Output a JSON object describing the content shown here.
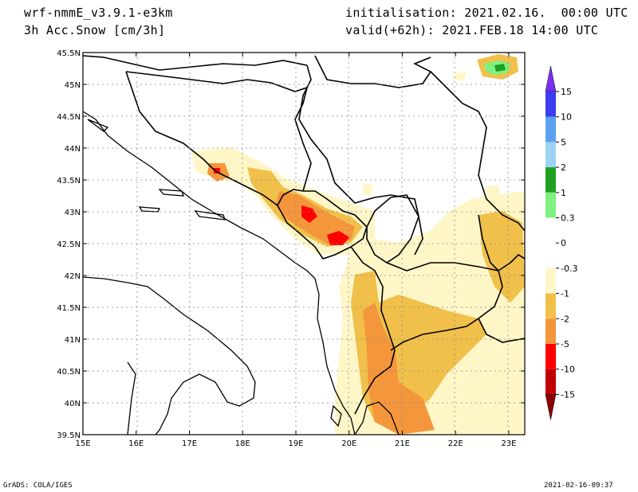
{
  "header": {
    "model": "wrf-nmmE_v3.9.1-e3km",
    "field": "3h Acc.Snow [cm/3h]",
    "init": "initialisation: 2021.02.16.  00:00 UTC",
    "valid": "valid(+62h): 2021.FEB.18 14:00 UTC"
  },
  "footer": {
    "credit": "GrADS: COLA/IGES",
    "timestamp": "2021-02-16-09:37"
  },
  "map": {
    "lon_labels": [
      "15E",
      "16E",
      "17E",
      "18E",
      "19E",
      "20E",
      "21E",
      "22E",
      "23E"
    ],
    "lat_labels": [
      "45.5N",
      "45N",
      "44.5N",
      "44N",
      "43.5N",
      "43N",
      "42.5N",
      "42N",
      "41.5N",
      "41N",
      "40.5N",
      "40N",
      "39.5N"
    ],
    "lon_range": [
      15,
      23.3
    ],
    "lat_range": [
      39.5,
      45.5
    ]
  },
  "colorbar": {
    "levels": [
      "15",
      "10",
      "5",
      "2",
      "1",
      "0.3",
      "0",
      "-0.3",
      "-1",
      "-2",
      "-5",
      "-10",
      "-15"
    ],
    "colors": [
      "#7b2ff0",
      "#3c3cf0",
      "#5aa2f0",
      "#9cd3f5",
      "#20a020",
      "#80f080",
      "#ffffff",
      "#ffffff",
      "#fff6c8",
      "#f0c04a",
      "#f4963c",
      "#ff0000",
      "#c00000",
      "#8b0000"
    ]
  },
  "snow_colors": {
    "light": "#fff6c8",
    "moderate": "#f0c04a",
    "heavy": "#f4963c",
    "very_heavy": "#ff0000",
    "extreme": "#c00000",
    "green_light": "#80f080",
    "green": "#20a020"
  }
}
